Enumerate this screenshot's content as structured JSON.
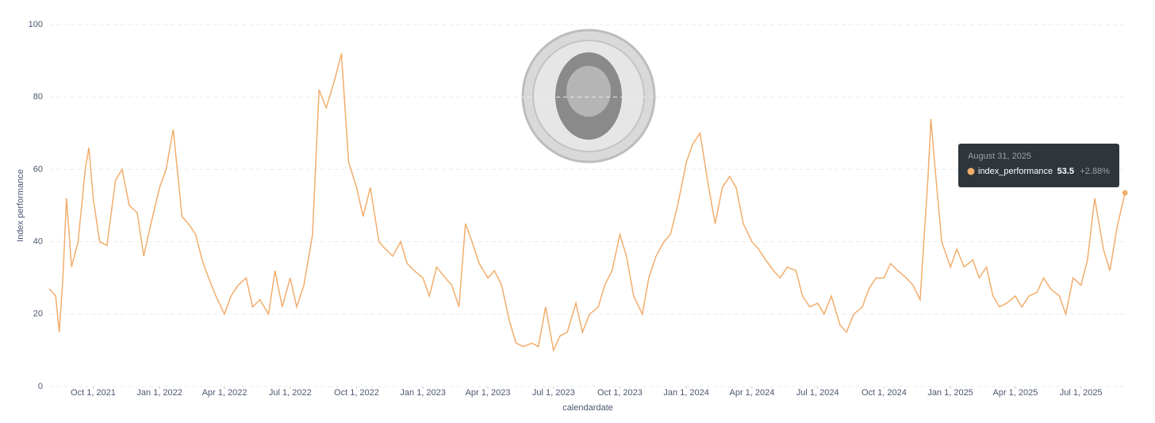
{
  "chart_data": {
    "type": "line",
    "y_label": "Index performance",
    "x_label": "calendardate",
    "ylim": [
      0,
      100
    ],
    "yticks": [
      0,
      20,
      40,
      60,
      80,
      100
    ],
    "grid": true,
    "xlim": [
      "2021-08-01",
      "2025-09-02"
    ],
    "xticks": [
      {
        "value": "2021-10-01",
        "label": "Oct 1, 2021"
      },
      {
        "value": "2022-01-01",
        "label": "Jan 1, 2022"
      },
      {
        "value": "2022-04-01",
        "label": "Apr 1, 2022"
      },
      {
        "value": "2022-07-01",
        "label": "Jul 1, 2022"
      },
      {
        "value": "2022-10-01",
        "label": "Oct 1, 2022"
      },
      {
        "value": "2023-01-01",
        "label": "Jan 1, 2023"
      },
      {
        "value": "2023-04-01",
        "label": "Apr 1, 2023"
      },
      {
        "value": "2023-07-01",
        "label": "Jul 1, 2023"
      },
      {
        "value": "2023-10-01",
        "label": "Oct 1, 2023"
      },
      {
        "value": "2024-01-01",
        "label": "Jan 1, 2024"
      },
      {
        "value": "2024-04-01",
        "label": "Apr 1, 2024"
      },
      {
        "value": "2024-07-01",
        "label": "Jul 1, 2024"
      },
      {
        "value": "2024-10-01",
        "label": "Oct 1, 2024"
      },
      {
        "value": "2025-01-01",
        "label": "Jan 1, 2025"
      },
      {
        "value": "2025-04-01",
        "label": "Apr 1, 2025"
      },
      {
        "value": "2025-07-01",
        "label": "Jul 1, 2025"
      }
    ],
    "x": [
      "2021-08-01",
      "2021-08-10",
      "2021-08-15",
      "2021-08-20",
      "2021-08-25",
      "2021-09-01",
      "2021-09-10",
      "2021-09-20",
      "2021-09-25",
      "2021-10-01",
      "2021-10-10",
      "2021-10-20",
      "2021-11-01",
      "2021-11-10",
      "2021-11-20",
      "2021-12-01",
      "2021-12-10",
      "2021-12-20",
      "2022-01-01",
      "2022-01-10",
      "2022-01-20",
      "2022-02-01",
      "2022-02-10",
      "2022-02-20",
      "2022-03-01",
      "2022-03-10",
      "2022-03-20",
      "2022-04-01",
      "2022-04-10",
      "2022-04-20",
      "2022-05-01",
      "2022-05-10",
      "2022-05-20",
      "2022-06-01",
      "2022-06-10",
      "2022-06-20",
      "2022-07-01",
      "2022-07-10",
      "2022-07-20",
      "2022-08-01",
      "2022-08-10",
      "2022-08-20",
      "2022-09-01",
      "2022-09-10",
      "2022-09-20",
      "2022-10-01",
      "2022-10-10",
      "2022-10-20",
      "2022-11-01",
      "2022-11-10",
      "2022-11-20",
      "2022-12-01",
      "2022-12-10",
      "2022-12-20",
      "2023-01-01",
      "2023-01-10",
      "2023-01-20",
      "2023-02-01",
      "2023-02-10",
      "2023-02-20",
      "2023-03-01",
      "2023-03-10",
      "2023-03-20",
      "2023-04-01",
      "2023-04-10",
      "2023-04-20",
      "2023-05-01",
      "2023-05-10",
      "2023-05-20",
      "2023-06-01",
      "2023-06-10",
      "2023-06-20",
      "2023-07-01",
      "2023-07-10",
      "2023-07-20",
      "2023-08-01",
      "2023-08-10",
      "2023-08-20",
      "2023-09-01",
      "2023-09-10",
      "2023-09-20",
      "2023-10-01",
      "2023-10-10",
      "2023-10-20",
      "2023-11-01",
      "2023-11-10",
      "2023-11-20",
      "2023-12-01",
      "2023-12-10",
      "2023-12-20",
      "2024-01-01",
      "2024-01-10",
      "2024-01-20",
      "2024-02-01",
      "2024-02-10",
      "2024-02-20",
      "2024-03-01",
      "2024-03-10",
      "2024-03-20",
      "2024-04-01",
      "2024-04-10",
      "2024-04-20",
      "2024-05-01",
      "2024-05-10",
      "2024-05-20",
      "2024-06-01",
      "2024-06-10",
      "2024-06-20",
      "2024-07-01",
      "2024-07-10",
      "2024-07-20",
      "2024-08-01",
      "2024-08-10",
      "2024-08-20",
      "2024-09-01",
      "2024-09-10",
      "2024-09-20",
      "2024-10-01",
      "2024-10-10",
      "2024-10-20",
      "2024-11-01",
      "2024-11-10",
      "2024-11-20",
      "2024-12-01",
      "2024-12-05",
      "2024-12-10",
      "2024-12-20",
      "2025-01-01",
      "2025-01-10",
      "2025-01-20",
      "2025-02-01",
      "2025-02-10",
      "2025-02-20",
      "2025-03-01",
      "2025-03-10",
      "2025-03-20",
      "2025-04-01",
      "2025-04-10",
      "2025-04-20",
      "2025-05-01",
      "2025-05-10",
      "2025-05-20",
      "2025-06-01",
      "2025-06-10",
      "2025-06-20",
      "2025-07-01",
      "2025-07-10",
      "2025-07-20",
      "2025-08-01",
      "2025-08-10",
      "2025-08-20",
      "2025-08-31"
    ],
    "series": [
      {
        "name": "index_performance",
        "color": "#f2ad6c",
        "values": [
          27,
          25,
          15,
          30,
          52,
          33,
          40,
          60,
          66,
          52,
          40,
          39,
          57,
          60,
          50,
          48,
          36,
          45,
          55,
          60,
          71,
          47,
          45,
          42,
          35,
          30,
          25,
          20,
          25,
          28,
          30,
          22,
          24,
          20,
          32,
          22,
          30,
          22,
          28,
          42,
          82,
          77,
          85,
          92,
          62,
          55,
          47,
          55,
          40,
          38,
          36,
          40,
          34,
          32,
          30,
          25,
          33,
          30,
          28,
          22,
          45,
          40,
          34,
          30,
          32,
          28,
          18,
          12,
          11,
          12,
          11,
          22,
          10,
          14,
          15,
          23,
          15,
          20,
          22,
          28,
          32,
          42,
          36,
          25,
          20,
          30,
          36,
          40,
          42,
          50,
          62,
          67,
          70,
          55,
          45,
          55,
          58,
          55,
          45,
          40,
          38,
          35,
          32,
          30,
          33,
          32,
          25,
          22,
          23,
          20,
          25,
          17,
          15,
          20,
          22,
          27,
          30,
          30,
          34,
          32,
          30,
          28,
          24,
          58,
          74,
          62,
          40,
          33,
          38,
          33,
          35,
          30,
          33,
          25,
          22,
          23,
          25,
          22,
          25,
          26,
          30,
          27,
          25,
          20,
          30,
          28,
          35,
          52,
          38,
          32,
          44,
          53.5
        ]
      }
    ],
    "tooltip": {
      "date": "August 31, 2025",
      "series": "index_performance",
      "value": 53.5,
      "value_label": "53.5",
      "change": "+2.88%"
    }
  }
}
